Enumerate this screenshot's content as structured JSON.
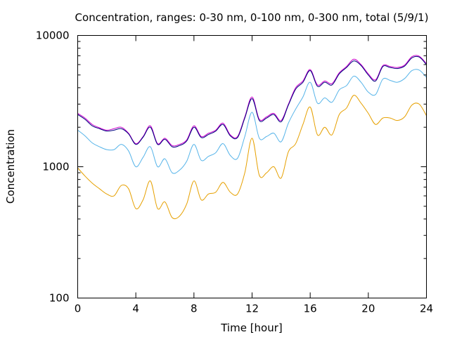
{
  "chart_data": {
    "type": "line",
    "title": "Concentration, ranges: 0-30 nm, 0-100 nm, 0-300 nm, total (5/9/1)",
    "xlabel": "Time [hour]",
    "ylabel": "Concentration",
    "xlim": [
      0,
      24
    ],
    "ylim": [
      100,
      10000
    ],
    "yscale": "log",
    "grid": false,
    "x_ticks": [
      0,
      4,
      8,
      12,
      16,
      20,
      24
    ],
    "x_tick_labels": [
      "0",
      "4",
      "8",
      "12",
      "16",
      "20",
      "24"
    ],
    "y_ticks": [
      100,
      1000,
      10000
    ],
    "y_tick_labels": [
      "100",
      "1000",
      "10000"
    ],
    "x": [
      0,
      0.5,
      1,
      1.5,
      2,
      2.5,
      3,
      3.5,
      4,
      4.5,
      5,
      5.5,
      6,
      6.5,
      7,
      7.5,
      8,
      8.5,
      9,
      9.5,
      10,
      10.5,
      11,
      11.5,
      12,
      12.5,
      13,
      13.5,
      14,
      14.5,
      15,
      15.5,
      16,
      16.5,
      17,
      17.5,
      18,
      18.5,
      19,
      19.5,
      20,
      20.5,
      21,
      21.5,
      22,
      22.5,
      23,
      23.5,
      24
    ],
    "series": [
      {
        "color": "#e6a000",
        "values": [
          980,
          850,
          750,
          680,
          620,
          600,
          720,
          680,
          480,
          560,
          780,
          480,
          540,
          410,
          420,
          520,
          780,
          560,
          620,
          640,
          760,
          640,
          620,
          900,
          1650,
          860,
          900,
          1000,
          820,
          1300,
          1500,
          2100,
          2850,
          1750,
          2000,
          1750,
          2500,
          2800,
          3500,
          3050,
          2550,
          2100,
          2350,
          2350,
          2250,
          2400,
          2950,
          3000,
          2450
        ]
      },
      {
        "color": "#56b4e9",
        "values": [
          1900,
          1720,
          1520,
          1420,
          1350,
          1350,
          1480,
          1320,
          1000,
          1180,
          1420,
          1000,
          1150,
          900,
          940,
          1100,
          1480,
          1120,
          1200,
          1280,
          1500,
          1220,
          1160,
          1700,
          2600,
          1650,
          1700,
          1800,
          1550,
          2150,
          2750,
          3400,
          4400,
          3050,
          3350,
          3100,
          3850,
          4150,
          4900,
          4400,
          3700,
          3550,
          4650,
          4550,
          4400,
          4700,
          5400,
          5450,
          4800
        ]
      },
      {
        "color": "#cc00cc",
        "values": [
          2550,
          2350,
          2100,
          1980,
          1900,
          1950,
          2000,
          1800,
          1500,
          1700,
          2050,
          1500,
          1650,
          1450,
          1480,
          1600,
          2050,
          1700,
          1800,
          1900,
          2150,
          1750,
          1700,
          2400,
          3400,
          2300,
          2400,
          2550,
          2250,
          3000,
          4000,
          4500,
          5500,
          4200,
          4500,
          4300,
          5200,
          5800,
          6600,
          6000,
          5100,
          4600,
          5900,
          5800,
          5700,
          5950,
          6900,
          6950,
          6100
        ]
      },
      {
        "color": "#000080",
        "values": [
          2500,
          2300,
          2050,
          1950,
          1870,
          1900,
          1950,
          1780,
          1480,
          1680,
          2000,
          1480,
          1620,
          1420,
          1450,
          1570,
          2000,
          1670,
          1760,
          1870,
          2100,
          1720,
          1670,
          2350,
          3300,
          2250,
          2350,
          2500,
          2200,
          2950,
          3900,
          4400,
          5400,
          4100,
          4400,
          4200,
          5100,
          5700,
          6400,
          5900,
          5000,
          4500,
          5800,
          5700,
          5600,
          5850,
          6750,
          6850,
          6000
        ]
      }
    ]
  }
}
